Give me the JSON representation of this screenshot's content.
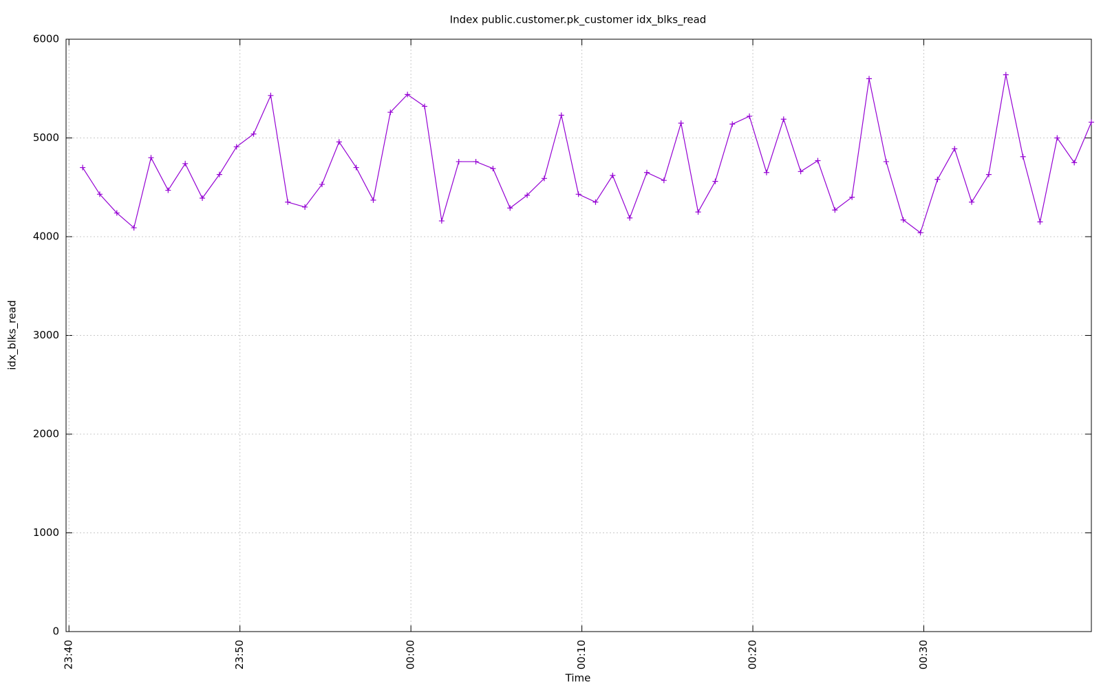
{
  "chart_data": {
    "type": "line",
    "title": "Index public.customer.pk_customer idx_blks_read",
    "x_label": "Time",
    "y_label": "idx_blks_read",
    "x": [
      1420.8,
      1421.8,
      1422.8,
      1423.8,
      1424.8,
      1425.8,
      1426.8,
      1427.8,
      1428.8,
      1429.8,
      1430.8,
      1431.8,
      1432.8,
      1433.8,
      1434.8,
      1435.8,
      1436.8,
      1437.8,
      1438.8,
      1439.8,
      1440.8,
      1441.8,
      1442.8,
      1443.8,
      1444.8,
      1445.8,
      1446.8,
      1447.8,
      1448.8,
      1449.8,
      1450.8,
      1451.8,
      1452.8,
      1453.8,
      1454.8,
      1455.8,
      1456.8,
      1457.8,
      1458.8,
      1459.8,
      1460.8,
      1461.8,
      1462.8,
      1463.8,
      1464.8,
      1465.8,
      1466.8,
      1467.8,
      1468.8,
      1469.8,
      1470.8,
      1471.8,
      1472.8,
      1473.8,
      1474.8,
      1475.8,
      1476.8,
      1477.8,
      1478.8,
      1479.8
    ],
    "values": [
      4700,
      4430,
      4240,
      4090,
      4800,
      4470,
      4740,
      4390,
      4630,
      4910,
      5040,
      5430,
      4350,
      4300,
      4530,
      4960,
      4700,
      4370,
      5260,
      5440,
      5320,
      4160,
      4760,
      4760,
      4690,
      4290,
      4420,
      4590,
      5230,
      4430,
      4350,
      4620,
      4190,
      4650,
      4570,
      5150,
      4250,
      4560,
      5140,
      5220,
      4650,
      5190,
      4660,
      4770,
      4270,
      4400,
      5600,
      4760,
      4170,
      4040,
      4580,
      4890,
      4350,
      4630,
      5640,
      4810,
      4150,
      5000,
      4750,
      5160
    ],
    "color": "#9400d3",
    "xlim": [
      1419.83,
      1479.8
    ],
    "xticks": [
      {
        "value": 1420,
        "label": "23:40"
      },
      {
        "value": 1430,
        "label": "23:50"
      },
      {
        "value": 1440,
        "label": "00:00"
      },
      {
        "value": 1450,
        "label": "00:10"
      },
      {
        "value": 1460,
        "label": "00:20"
      },
      {
        "value": 1470,
        "label": "00:30"
      }
    ],
    "ylim": [
      0,
      6000
    ],
    "yticks": [
      0,
      1000,
      2000,
      3000,
      4000,
      5000,
      6000
    ],
    "grid": true
  }
}
